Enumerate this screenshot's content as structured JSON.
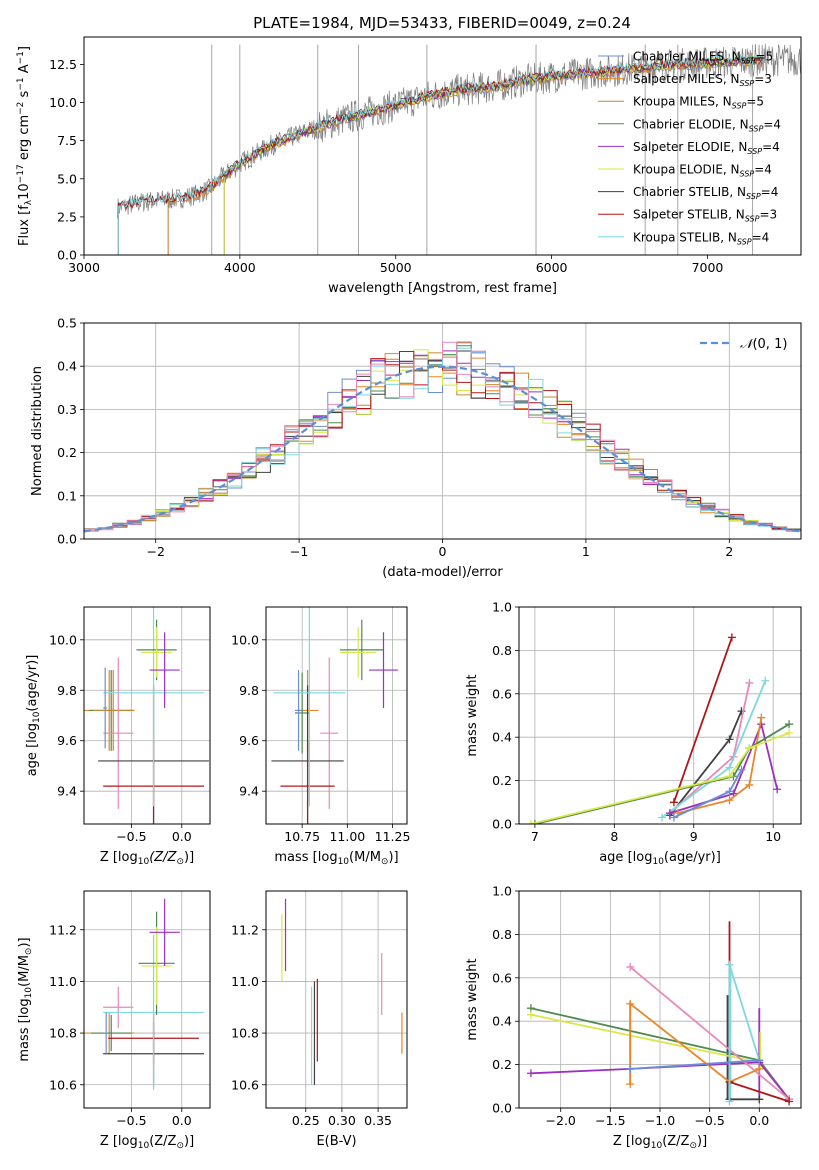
{
  "figure": {
    "title": "PLATE=1984, MJD=53433, FIBERID=0049, z=0.24"
  },
  "chart_data": [
    {
      "id": "spectrum",
      "type": "line",
      "title": "PLATE=1984, MJD=53433, FIBERID=0049, z=0.24",
      "xlabel": "wavelength [Angstrom, rest frame]",
      "ylabel": "Flux [f_λ 10^-17 erg cm^-2 s^-1 A^-1]",
      "xlim": [
        3000,
        7600
      ],
      "ylim": [
        0,
        14.3
      ],
      "xticks": [
        3000,
        4000,
        5000,
        6000,
        7000
      ],
      "yticks": [
        0.0,
        2.5,
        5.0,
        7.5,
        10.0,
        12.5
      ],
      "grid": false,
      "legend_position": "right",
      "data_color": "#808080",
      "data_start": 3215,
      "continuum": {
        "x": [
          3215,
          3300,
          3400,
          3500,
          3600,
          3700,
          3800,
          3900,
          4000,
          4200,
          4400,
          4600,
          4800,
          5000,
          5200,
          5400,
          5600,
          5800,
          6000,
          6200,
          6400,
          6600,
          6800,
          7000,
          7200,
          7350
        ],
        "y": [
          3.1,
          3.3,
          3.5,
          3.6,
          3.7,
          3.9,
          4.3,
          5.2,
          6.0,
          7.2,
          8.0,
          8.7,
          9.3,
          9.8,
          10.4,
          10.8,
          11.0,
          11.4,
          11.7,
          11.9,
          12.1,
          12.3,
          12.5,
          12.6,
          12.7,
          12.8
        ]
      },
      "spikes": [
        3820,
        4000,
        4500,
        4760,
        5200,
        5900,
        6600,
        6810,
        7290
      ],
      "series": [
        {
          "name": "Chabrier MILES, N_SSP=5",
          "color": "#6b8fd6",
          "start": 3540
        },
        {
          "name": "Salpeter MILES, N_SSP=3",
          "color": "#e8862a",
          "start": 3540
        },
        {
          "name": "Kroupa MILES, N_SSP=5",
          "color": "#c68a2e",
          "start": 3540
        },
        {
          "name": "Chabrier ELODIE, N_SSP=4",
          "color": "#4f8a4f",
          "start": 3900
        },
        {
          "name": "Salpeter ELODIE, N_SSP=4",
          "color": "#9b30c0",
          "start": 3900
        },
        {
          "name": "Kroupa ELODIE, N_SSP=4",
          "color": "#d8e84a",
          "start": 3900
        },
        {
          "name": "Chabrier STELIB, N_SSP=4",
          "color": "#404040",
          "start": 3220
        },
        {
          "name": "Salpeter STELIB, N_SSP=3",
          "color": "#b01818",
          "start": 3220
        },
        {
          "name": "Kroupa STELIB, N_SSP=4",
          "color": "#7dd8e0",
          "start": 3220
        }
      ]
    },
    {
      "id": "residuals",
      "type": "histogram",
      "xlabel": "(data-model)/error",
      "ylabel": "Normed distribution",
      "xlim": [
        -2.5,
        2.5
      ],
      "ylim": [
        0,
        0.5
      ],
      "xticks": [
        -2,
        -1,
        0,
        1,
        2
      ],
      "yticks": [
        0.0,
        0.1,
        0.2,
        0.3,
        0.4,
        0.5
      ],
      "grid": true,
      "legend_position": "top-right",
      "reference": {
        "name": "N(0,1)",
        "color": "#5b8fd6",
        "style": "dashed"
      },
      "bin_width": 0.1,
      "series_colors": [
        "#6b8fd6",
        "#e8862a",
        "#c68a2e",
        "#4f8a4f",
        "#9b30c0",
        "#d8e84a",
        "#404040",
        "#b01818",
        "#7dd8e0",
        "#e889b8"
      ]
    },
    {
      "id": "age_vs_Z",
      "type": "scatter",
      "xlabel": "Z [log10(Z/Z⊙)]",
      "ylabel": "age  [log10(age/yr)]",
      "xlim": [
        -0.97,
        0.28
      ],
      "ylim": [
        9.27,
        10.13
      ],
      "xticks": [
        -0.5,
        0.0
      ],
      "yticks": [
        9.4,
        9.6,
        9.8,
        10.0
      ],
      "grid": true,
      "points": [
        {
          "x": -0.72,
          "y": 9.72,
          "xerr": 0.25,
          "yerr": 0.16,
          "color": "#e8862a"
        },
        {
          "x": -0.7,
          "y": 9.72,
          "xerr": 0.22,
          "yerr": 0.16,
          "color": "#4f8a4f"
        },
        {
          "x": -0.68,
          "y": 9.72,
          "xerr": 0.2,
          "yerr": 0.16,
          "color": "#c68a2e"
        },
        {
          "x": -0.63,
          "y": 9.63,
          "xerr": 0.15,
          "yerr": 0.3,
          "color": "#e889b8"
        },
        {
          "x": -0.28,
          "y": 9.52,
          "xerr": 0.55,
          "yerr": 0.3,
          "color": "#404040"
        },
        {
          "x": -0.28,
          "y": 9.42,
          "xerr": 0.5,
          "yerr": 0.18,
          "color": "#b01818"
        },
        {
          "x": -0.28,
          "y": 9.79,
          "xerr": 0.5,
          "yerr": 0.45,
          "color": "#7dd8e0"
        },
        {
          "x": -0.25,
          "y": 9.96,
          "xerr": 0.2,
          "yerr": 0.12,
          "color": "#4f8a4f"
        },
        {
          "x": -0.25,
          "y": 9.95,
          "xerr": 0.15,
          "yerr": 0.1,
          "color": "#d8e84a"
        },
        {
          "x": -0.17,
          "y": 9.88,
          "xerr": 0.15,
          "yerr": 0.15,
          "color": "#9b30c0"
        },
        {
          "x": -0.76,
          "y": 9.73,
          "xerr": 0.02,
          "yerr": 0.16,
          "color": "#6b8fd6"
        }
      ]
    },
    {
      "id": "age_vs_mass",
      "type": "scatter",
      "xlabel": "mass [log10(M/M⊙)]",
      "ylabel": "",
      "xlim": [
        10.55,
        11.33
      ],
      "ylim": [
        9.27,
        10.13
      ],
      "xticks": [
        10.75,
        11.0,
        11.25
      ],
      "xticklabels": [
        "10.75",
        "11.00",
        "11.25"
      ],
      "yticks": [
        9.4,
        9.6,
        9.8,
        10.0
      ],
      "grid": true,
      "points": [
        {
          "x": 10.78,
          "y": 9.72,
          "xerr": 0.06,
          "yerr": 0.16,
          "color": "#e8862a"
        },
        {
          "x": 10.75,
          "y": 9.71,
          "xerr": 0.04,
          "yerr": 0.16,
          "color": "#4f8a4f"
        },
        {
          "x": 10.9,
          "y": 9.63,
          "xerr": 0.05,
          "yerr": 0.3,
          "color": "#e889b8"
        },
        {
          "x": 10.78,
          "y": 9.52,
          "xerr": 0.2,
          "yerr": 0.3,
          "color": "#404040"
        },
        {
          "x": 10.78,
          "y": 9.42,
          "xerr": 0.15,
          "yerr": 0.18,
          "color": "#b01818"
        },
        {
          "x": 10.79,
          "y": 9.79,
          "xerr": 0.2,
          "yerr": 0.45,
          "color": "#7dd8e0"
        },
        {
          "x": 11.08,
          "y": 9.96,
          "xerr": 0.12,
          "yerr": 0.12,
          "color": "#4f8a4f"
        },
        {
          "x": 11.06,
          "y": 9.95,
          "xerr": 0.1,
          "yerr": 0.1,
          "color": "#d8e84a"
        },
        {
          "x": 11.2,
          "y": 9.88,
          "xerr": 0.08,
          "yerr": 0.15,
          "color": "#9b30c0"
        },
        {
          "x": 10.73,
          "y": 9.72,
          "xerr": 0.02,
          "yerr": 0.16,
          "color": "#6b8fd6"
        }
      ]
    },
    {
      "id": "massweight_vs_age",
      "type": "line",
      "xlabel": "age  [log10(age/yr)]",
      "ylabel": "mass weight",
      "xlim": [
        6.8,
        10.35
      ],
      "ylim": [
        0,
        1
      ],
      "xticks": [
        7,
        8,
        9,
        10
      ],
      "yticks": [
        0.0,
        0.2,
        0.4,
        0.6,
        0.8,
        1.0
      ],
      "grid": true,
      "series": [
        {
          "color": "#b01818",
          "x": [
            8.75,
            9.48
          ],
          "y": [
            0.1,
            0.86
          ]
        },
        {
          "color": "#404040",
          "x": [
            8.7,
            9.45,
            9.6
          ],
          "y": [
            0.04,
            0.39,
            0.52
          ]
        },
        {
          "color": "#e889b8",
          "x": [
            8.7,
            9.5,
            9.7
          ],
          "y": [
            0.05,
            0.31,
            0.65
          ]
        },
        {
          "color": "#7dd8e0",
          "x": [
            8.6,
            9.45,
            9.9
          ],
          "y": [
            0.03,
            0.26,
            0.66
          ]
        },
        {
          "color": "#9b30c0",
          "x": [
            8.7,
            9.5,
            9.85,
            10.05
          ],
          "y": [
            0.05,
            0.14,
            0.46,
            0.16
          ]
        },
        {
          "color": "#e8862a",
          "x": [
            8.8,
            9.45,
            9.7,
            9.85
          ],
          "y": [
            0.05,
            0.11,
            0.18,
            0.49
          ]
        },
        {
          "color": "#4f8a4f",
          "x": [
            7.0,
            9.5,
            9.7,
            10.2
          ],
          "y": [
            0.0,
            0.22,
            0.35,
            0.46
          ]
        },
        {
          "color": "#d8e84a",
          "x": [
            6.95,
            9.45,
            9.7,
            10.2
          ],
          "y": [
            0.0,
            0.22,
            0.35,
            0.42
          ]
        },
        {
          "color": "#6b8fd6",
          "x": [
            8.75,
            9.45,
            9.6
          ],
          "y": [
            0.03,
            0.15,
            0.25
          ]
        }
      ]
    },
    {
      "id": "mass_vs_Z",
      "type": "scatter",
      "xlabel": "Z [log10(Z/Z⊙)]",
      "ylabel": "mass [log10(M/M⊙)]",
      "xlim": [
        -0.97,
        0.28
      ],
      "ylim": [
        10.51,
        11.35
      ],
      "xticks": [
        -0.5,
        0.0
      ],
      "yticks": [
        10.6,
        10.8,
        11.0,
        11.2
      ],
      "grid": true,
      "points": [
        {
          "x": -0.72,
          "y": 10.8,
          "xerr": 0.25,
          "yerr": 0.08,
          "color": "#e8862a"
        },
        {
          "x": -0.7,
          "y": 10.8,
          "xerr": 0.2,
          "yerr": 0.07,
          "color": "#4f8a4f"
        },
        {
          "x": -0.63,
          "y": 10.9,
          "xerr": 0.15,
          "yerr": 0.08,
          "color": "#e889b8"
        },
        {
          "x": -0.28,
          "y": 10.72,
          "xerr": 0.5,
          "yerr": 0.12,
          "color": "#404040"
        },
        {
          "x": -0.28,
          "y": 10.78,
          "xerr": 0.45,
          "yerr": 0.1,
          "color": "#b01818"
        },
        {
          "x": -0.28,
          "y": 10.88,
          "xerr": 0.5,
          "yerr": 0.3,
          "color": "#7dd8e0"
        },
        {
          "x": -0.25,
          "y": 11.07,
          "xerr": 0.18,
          "yerr": 0.2,
          "color": "#4f8a4f"
        },
        {
          "x": -0.25,
          "y": 11.06,
          "xerr": 0.15,
          "yerr": 0.15,
          "color": "#d8e84a"
        },
        {
          "x": -0.17,
          "y": 11.19,
          "xerr": 0.15,
          "yerr": 0.13,
          "color": "#9b30c0"
        },
        {
          "x": -0.75,
          "y": 10.8,
          "xerr": 0.02,
          "yerr": 0.08,
          "color": "#6b8fd6"
        }
      ]
    },
    {
      "id": "mass_vs_EBV",
      "type": "scatter",
      "xlabel": "E(B-V)",
      "ylabel": "",
      "xlim": [
        0.195,
        0.39
      ],
      "ylim": [
        10.51,
        11.35
      ],
      "xticks": [
        0.25,
        0.3,
        0.35
      ],
      "xticklabels": [
        "0.25",
        "0.30",
        "0.35"
      ],
      "yticks": [
        10.6,
        10.8,
        11.0,
        11.2
      ],
      "grid": true,
      "points": [
        {
          "x": 0.222,
          "y": 11.18,
          "yerr": 0.14,
          "color": "#9b30c0"
        },
        {
          "x": 0.217,
          "y": 11.13,
          "yerr": 0.13,
          "color": "#d8e84a"
        },
        {
          "x": 0.258,
          "y": 10.79,
          "yerr": 0.19,
          "color": "#7dd8e0"
        },
        {
          "x": 0.262,
          "y": 10.8,
          "yerr": 0.2,
          "color": "#404040"
        },
        {
          "x": 0.266,
          "y": 10.85,
          "yerr": 0.16,
          "color": "#b01818"
        },
        {
          "x": 0.355,
          "y": 10.99,
          "yerr": 0.12,
          "color": "#e889b8"
        },
        {
          "x": 0.383,
          "y": 10.8,
          "yerr": 0.08,
          "color": "#e8862a"
        }
      ]
    },
    {
      "id": "massweight_vs_Z",
      "type": "line",
      "xlabel": "Z [log10(Z/Z⊙)]",
      "ylabel": "mass weight",
      "xlim": [
        -2.42,
        0.42
      ],
      "ylim": [
        0,
        1
      ],
      "xticks": [
        -2.0,
        -1.5,
        -1.0,
        -0.5,
        0.0
      ],
      "yticks": [
        0.0,
        0.2,
        0.4,
        0.6,
        0.8,
        1.0
      ],
      "grid": true,
      "series": [
        {
          "color": "#4f8a4f",
          "x": [
            -2.3,
            0.0,
            0.3
          ],
          "y": [
            0.46,
            0.22,
            0.04
          ]
        },
        {
          "color": "#d8e84a",
          "x": [
            -2.3,
            0.0,
            0.3
          ],
          "y": [
            0.43,
            0.21,
            0.04
          ]
        },
        {
          "color": "#9b30c0",
          "x": [
            -2.3,
            -1.3,
            0.0,
            0.3
          ],
          "y": [
            0.16,
            0.18,
            0.21,
            0.04
          ]
        },
        {
          "color": "#e889b8",
          "x": [
            -1.3,
            0.3
          ],
          "y": [
            0.65,
            0.04
          ]
        },
        {
          "color": "#e8862a",
          "x": [
            -1.3,
            -1.3,
            -0.3,
            0.0
          ],
          "y": [
            0.11,
            0.48,
            0.12,
            0.18
          ]
        },
        {
          "color": "#b01818",
          "x": [
            -0.3,
            0.3
          ],
          "y": [
            0.12,
            0.03
          ]
        },
        {
          "color": "#404040",
          "x": [
            -0.3,
            0.0
          ],
          "y": [
            0.04,
            0.04
          ]
        },
        {
          "color": "#7dd8e0",
          "x": [
            -0.3,
            -0.3,
            0.0
          ],
          "y": [
            0.03,
            0.66,
            0.22
          ]
        },
        {
          "color": "#6b8fd6",
          "x": [
            -1.3,
            0.0
          ],
          "y": [
            0.18,
            0.22
          ]
        }
      ],
      "verticals": [
        {
          "color": "#b01818",
          "x": -0.3,
          "y0": 0.12,
          "y1": 0.86
        },
        {
          "color": "#404040",
          "x": -0.32,
          "y0": 0.04,
          "y1": 0.52
        },
        {
          "color": "#7dd8e0",
          "x": -0.29,
          "y0": 0.03,
          "y1": 0.66
        },
        {
          "color": "#9b30c0",
          "x": 0.0,
          "y0": 0.04,
          "y1": 0.46
        },
        {
          "color": "#d8e84a",
          "x": 0.01,
          "y0": 0.18,
          "y1": 0.35
        },
        {
          "color": "#e8862a",
          "x": -1.3,
          "y0": 0.11,
          "y1": 0.49
        }
      ]
    }
  ]
}
